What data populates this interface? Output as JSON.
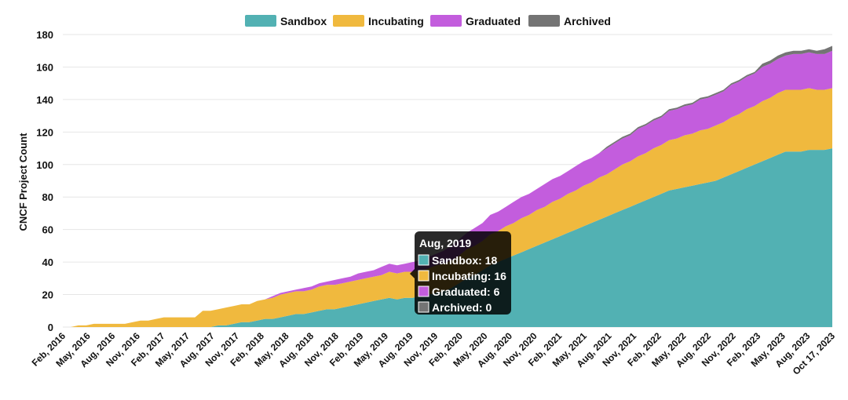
{
  "chart_data": {
    "type": "area",
    "stacked": true,
    "ylabel": "CNCF Project Count",
    "ylim": [
      0,
      180
    ],
    "yticks": [
      0,
      20,
      40,
      60,
      80,
      100,
      120,
      140,
      160,
      180
    ],
    "grid": true,
    "legend_position": "top-center",
    "x_tick_labels": [
      "Feb, 2016",
      "May, 2016",
      "Aug, 2016",
      "Nov, 2016",
      "Feb, 2017",
      "May, 2017",
      "Aug, 2017",
      "Nov, 2017",
      "Feb, 2018",
      "May, 2018",
      "Aug, 2018",
      "Nov, 2018",
      "Feb, 2019",
      "May, 2019",
      "Aug, 2019",
      "Nov, 2019",
      "Feb, 2020",
      "May, 2020",
      "Aug, 2020",
      "Nov, 2020",
      "Feb, 2021",
      "May, 2021",
      "Aug, 2021",
      "Nov, 2021",
      "Feb, 2022",
      "May, 2022",
      "Aug, 2022",
      "Nov, 2022",
      "Feb, 2023",
      "May, 2023",
      "Aug, 2023",
      "Oct 17, 2023"
    ],
    "series": [
      {
        "name": "Sandbox",
        "color": "#52b1b3",
        "values": [
          0,
          0,
          0,
          0,
          0,
          0,
          0,
          0,
          0,
          0,
          0,
          0,
          0,
          0,
          0,
          0,
          0,
          0,
          0,
          0,
          1,
          1,
          2,
          3,
          3,
          4,
          5,
          5,
          6,
          7,
          8,
          8,
          9,
          10,
          11,
          11,
          12,
          13,
          14,
          15,
          16,
          17,
          18,
          17,
          18,
          18,
          19,
          20,
          21,
          22,
          24,
          27,
          30,
          32,
          35,
          38,
          40,
          42,
          44,
          46,
          48,
          50,
          52,
          54,
          56,
          58,
          60,
          62,
          64,
          66,
          68,
          70,
          72,
          74,
          76,
          78,
          80,
          82,
          84,
          85,
          86,
          87,
          88,
          89,
          90,
          92,
          94,
          96,
          98,
          100,
          102,
          104,
          106,
          108,
          108,
          108,
          109,
          109,
          109,
          110
        ]
      },
      {
        "name": "Incubating",
        "color": "#f0b93e",
        "values": [
          0,
          0,
          1,
          1,
          2,
          2,
          2,
          2,
          2,
          3,
          4,
          4,
          5,
          6,
          6,
          6,
          6,
          6,
          10,
          10,
          10,
          11,
          11,
          11,
          11,
          12,
          12,
          13,
          14,
          14,
          14,
          14,
          14,
          15,
          15,
          15,
          15,
          15,
          15,
          15,
          15,
          15,
          16,
          16,
          16,
          16,
          16,
          16,
          17,
          17,
          17,
          17,
          18,
          18,
          18,
          19,
          19,
          20,
          20,
          21,
          21,
          22,
          22,
          23,
          23,
          24,
          24,
          25,
          25,
          26,
          26,
          27,
          28,
          28,
          29,
          29,
          30,
          30,
          31,
          31,
          32,
          32,
          33,
          33,
          34,
          34,
          35,
          35,
          36,
          36,
          37,
          37,
          38,
          38,
          38,
          38,
          38,
          37,
          37,
          37
        ]
      },
      {
        "name": "Graduated",
        "color": "#c35ddd",
        "values": [
          0,
          0,
          0,
          0,
          0,
          0,
          0,
          0,
          0,
          0,
          0,
          0,
          0,
          0,
          0,
          0,
          0,
          0,
          0,
          0,
          0,
          0,
          0,
          0,
          0,
          0,
          0,
          1,
          1,
          1,
          1,
          2,
          2,
          2,
          2,
          3,
          3,
          3,
          4,
          4,
          4,
          5,
          5,
          5,
          5,
          6,
          6,
          7,
          7,
          8,
          9,
          10,
          10,
          11,
          11,
          12,
          12,
          12,
          13,
          13,
          13,
          13,
          14,
          14,
          14,
          14,
          15,
          15,
          15,
          15,
          16,
          16,
          16,
          16,
          17,
          17,
          17,
          17,
          18,
          18,
          18,
          18,
          19,
          19,
          19,
          19,
          20,
          20,
          20,
          20,
          21,
          21,
          21,
          21,
          22,
          22,
          22,
          22,
          22,
          23
        ]
      },
      {
        "name": "Archived",
        "color": "#747474",
        "values": [
          0,
          0,
          0,
          0,
          0,
          0,
          0,
          0,
          0,
          0,
          0,
          0,
          0,
          0,
          0,
          0,
          0,
          0,
          0,
          0,
          0,
          0,
          0,
          0,
          0,
          0,
          0,
          0,
          0,
          0,
          0,
          0,
          0,
          0,
          0,
          0,
          0,
          0,
          0,
          0,
          0,
          0,
          0,
          0,
          0,
          0,
          0,
          0,
          0,
          0,
          0,
          0,
          0,
          0,
          0,
          0,
          0,
          0,
          0,
          0,
          0,
          0,
          0,
          0,
          0,
          0,
          0,
          0,
          0,
          0,
          1,
          1,
          1,
          1,
          1,
          1,
          1,
          1,
          1,
          1,
          1,
          1,
          1,
          1,
          1,
          1,
          1,
          1,
          1,
          1,
          2,
          2,
          2,
          2,
          2,
          2,
          2,
          2,
          3,
          3
        ]
      }
    ],
    "tooltip": {
      "title": "Aug, 2019",
      "lines": [
        {
          "series": "Sandbox",
          "text": "Sandbox: 18",
          "color": "#52b1b3"
        },
        {
          "series": "Incubating",
          "text": "Incubating: 16",
          "color": "#f0b93e"
        },
        {
          "series": "Graduated",
          "text": "Graduated: 6",
          "color": "#c35ddd"
        },
        {
          "series": "Archived",
          "text": "Archived: 0",
          "color": "#747474"
        }
      ]
    }
  }
}
